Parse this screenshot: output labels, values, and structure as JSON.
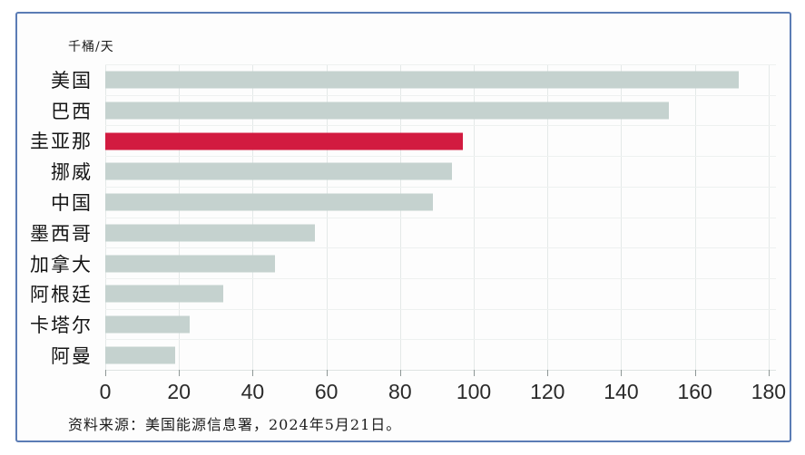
{
  "frame": {
    "border_color": "#5b7cb5",
    "background": "#fdfdfd"
  },
  "chart_data": {
    "type": "bar",
    "orientation": "horizontal",
    "unit_label": "千桶/天",
    "categories": [
      "美国",
      "巴西",
      "圭亚那",
      "挪威",
      "中国",
      "墨西哥",
      "加拿大",
      "阿根廷",
      "卡塔尔",
      "阿曼"
    ],
    "values": [
      172,
      153,
      97,
      94,
      89,
      57,
      46,
      32,
      23,
      19
    ],
    "highlight_index": 2,
    "bar_color": "#c5d2cf",
    "highlight_color": "#d21b40",
    "xlim": [
      0,
      182
    ],
    "xticks": [
      0,
      20,
      40,
      60,
      80,
      100,
      120,
      140,
      160,
      180
    ],
    "grid": "vertical",
    "legend": "none",
    "source_note": "资料来源：美国能源信息署，2024年5月21日。"
  }
}
